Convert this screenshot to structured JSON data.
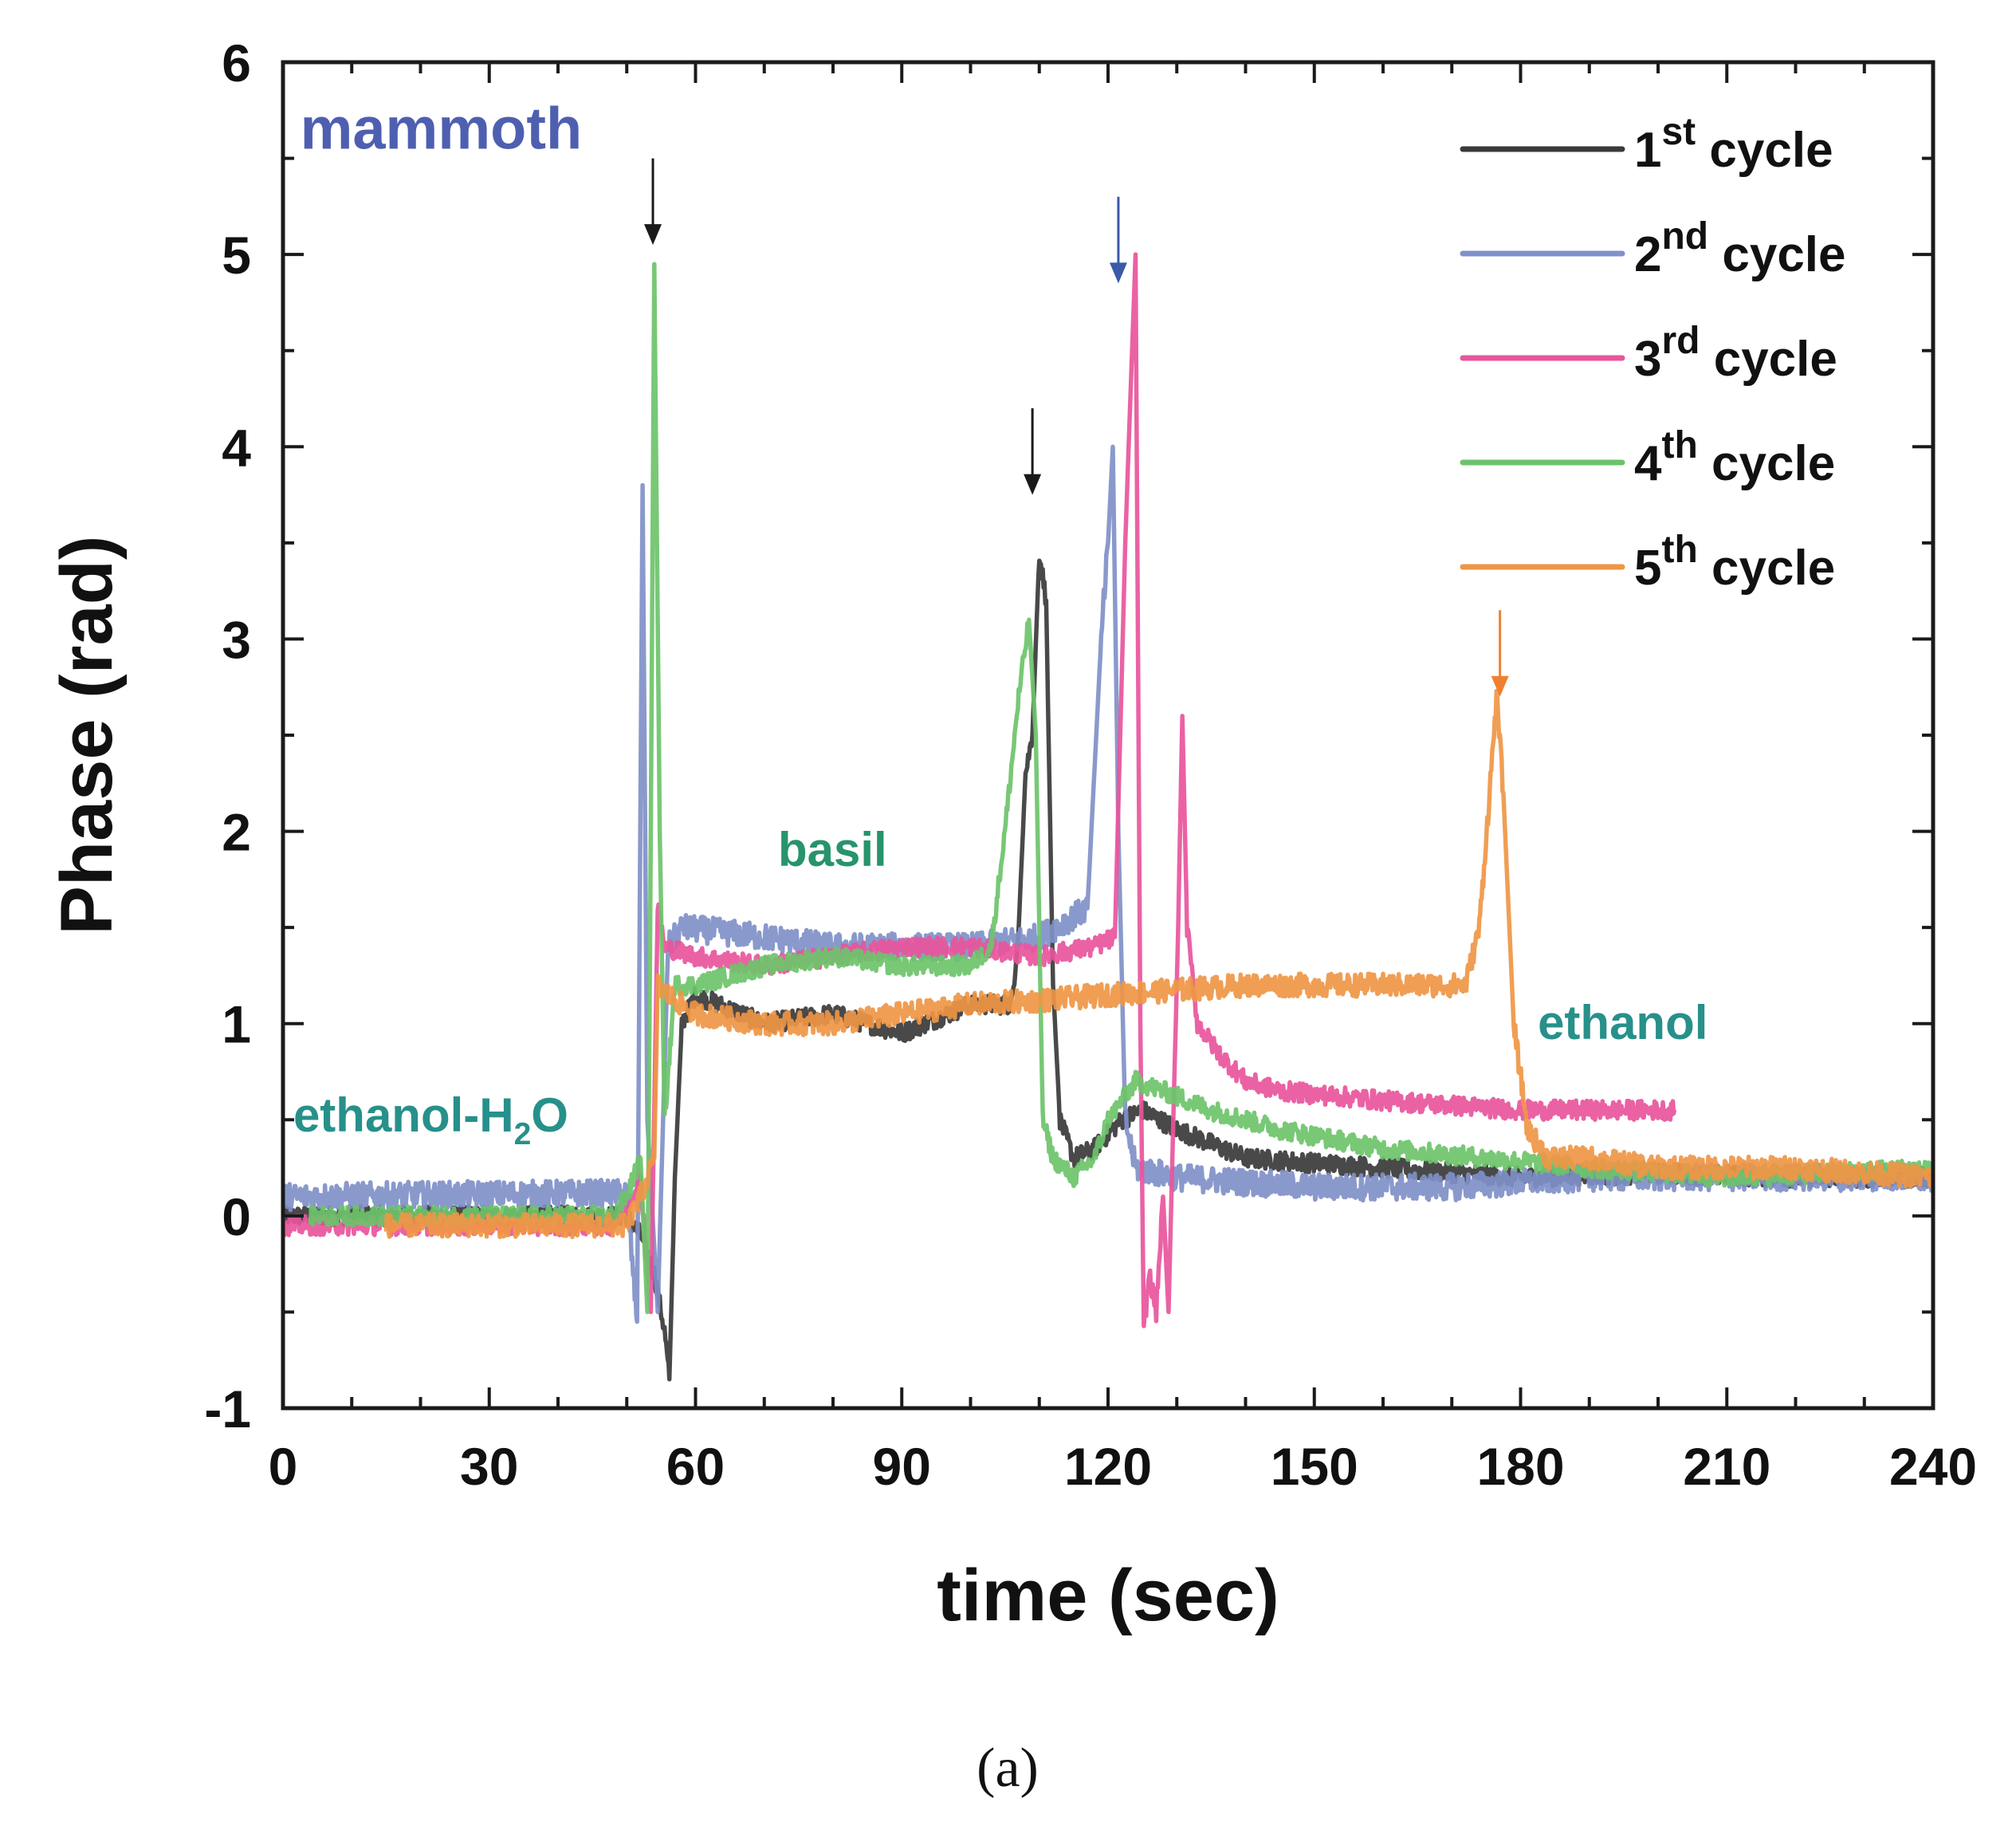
{
  "caption": "(a)",
  "chart_data": {
    "type": "line",
    "title": "",
    "xlabel": "time (sec)",
    "ylabel": "Phase (rad)",
    "xlim": [
      0,
      240
    ],
    "ylim": [
      -1,
      6
    ],
    "xticks": [
      0,
      30,
      60,
      90,
      120,
      150,
      180,
      210,
      240
    ],
    "yticks": [
      -1,
      0,
      1,
      2,
      3,
      4,
      5,
      6
    ],
    "grid": false,
    "legend_position": "top-right",
    "series": [
      {
        "name": "1st cycle",
        "label_main": "1",
        "label_sup": "st",
        "label_rest": " cycle",
        "color": "#3a3a3a",
        "noise": 0.05,
        "points": [
          [
            0,
            0.0
          ],
          [
            50,
            0.0
          ],
          [
            52,
            -0.1
          ],
          [
            54,
            -0.3
          ],
          [
            55.5,
            -0.6
          ],
          [
            56.2,
            -0.85
          ],
          [
            57,
            0.2
          ],
          [
            58,
            1.0
          ],
          [
            60,
            1.15
          ],
          [
            70,
            1.0
          ],
          [
            80,
            1.05
          ],
          [
            90,
            0.95
          ],
          [
            100,
            1.1
          ],
          [
            106,
            1.1
          ],
          [
            107,
            1.5
          ],
          [
            108,
            2.3
          ],
          [
            109,
            2.5
          ],
          [
            110,
            3.45
          ],
          [
            111,
            3.2
          ],
          [
            112,
            1.2
          ],
          [
            113,
            0.5
          ],
          [
            115,
            0.3
          ],
          [
            118,
            0.35
          ],
          [
            122,
            0.5
          ],
          [
            125,
            0.55
          ],
          [
            130,
            0.45
          ],
          [
            140,
            0.3
          ],
          [
            160,
            0.25
          ],
          [
            180,
            0.2
          ],
          [
            200,
            0.22
          ],
          [
            220,
            0.2
          ],
          [
            240,
            0.2
          ]
        ]
      },
      {
        "name": "2nd cycle",
        "label_main": "2",
        "label_sup": "nd",
        "label_rest": " cycle",
        "color": "#8090c8",
        "noise": 0.07,
        "points": [
          [
            0,
            0.1
          ],
          [
            50,
            0.12
          ],
          [
            51.5,
            -0.55
          ],
          [
            52.3,
            3.8
          ],
          [
            53,
            0.5
          ],
          [
            54.5,
            -0.5
          ],
          [
            56,
            1.4
          ],
          [
            58,
            1.5
          ],
          [
            70,
            1.45
          ],
          [
            80,
            1.4
          ],
          [
            90,
            1.4
          ],
          [
            100,
            1.4
          ],
          [
            110,
            1.45
          ],
          [
            117,
            1.6
          ],
          [
            119,
            3.0
          ],
          [
            120,
            3.5
          ],
          [
            120.7,
            4.0
          ],
          [
            121.5,
            2.0
          ],
          [
            122.5,
            0.5
          ],
          [
            124,
            0.25
          ],
          [
            130,
            0.2
          ],
          [
            150,
            0.15
          ],
          [
            170,
            0.15
          ],
          [
            190,
            0.2
          ],
          [
            210,
            0.2
          ],
          [
            240,
            0.2
          ]
        ]
      },
      {
        "name": "3rd cycle",
        "label_main": "3",
        "label_sup": "rd",
        "label_rest": " cycle",
        "color": "#e8559c",
        "noise": 0.05,
        "points": [
          [
            0,
            -0.05
          ],
          [
            48,
            -0.05
          ],
          [
            50,
            0.05
          ],
          [
            52,
            0.2
          ],
          [
            53.5,
            -0.5
          ],
          [
            54.5,
            1.6
          ],
          [
            55.5,
            1.4
          ],
          [
            60,
            1.35
          ],
          [
            70,
            1.3
          ],
          [
            80,
            1.35
          ],
          [
            90,
            1.4
          ],
          [
            100,
            1.4
          ],
          [
            110,
            1.35
          ],
          [
            118,
            1.4
          ],
          [
            121,
            1.45
          ],
          [
            122.5,
            3.5
          ],
          [
            124,
            5.0
          ],
          [
            124.7,
            1.0
          ],
          [
            125.2,
            -0.6
          ],
          [
            126,
            -0.3
          ],
          [
            127,
            -0.5
          ],
          [
            128,
            0.1
          ],
          [
            128.8,
            -0.5
          ],
          [
            129.5,
            0.5
          ],
          [
            130.2,
            1.5
          ],
          [
            130.8,
            2.6
          ],
          [
            131.5,
            1.5
          ],
          [
            133,
            1.0
          ],
          [
            136,
            0.85
          ],
          [
            140,
            0.7
          ],
          [
            145,
            0.65
          ],
          [
            160,
            0.6
          ],
          [
            180,
            0.55
          ],
          [
            190,
            0.55
          ],
          [
            202.5,
            0.55
          ]
        ]
      },
      {
        "name": "4th cycle",
        "label_main": "4",
        "label_sup": "th",
        "label_rest": " cycle",
        "color": "#6cc36a",
        "noise": 0.05,
        "points": [
          [
            4,
            0.0
          ],
          [
            48,
            0.0
          ],
          [
            50,
            0.1
          ],
          [
            52,
            0.3
          ],
          [
            53,
            -0.5
          ],
          [
            53.5,
            2.0
          ],
          [
            54,
            4.95
          ],
          [
            54.8,
            2.0
          ],
          [
            55.5,
            0.5
          ],
          [
            57,
            1.2
          ],
          [
            60,
            1.2
          ],
          [
            70,
            1.3
          ],
          [
            80,
            1.35
          ],
          [
            90,
            1.3
          ],
          [
            100,
            1.3
          ],
          [
            103,
            1.4
          ],
          [
            105,
            2.0
          ],
          [
            107,
            2.7
          ],
          [
            108.5,
            3.1
          ],
          [
            109.5,
            2.5
          ],
          [
            110.5,
            0.5
          ],
          [
            112,
            0.3
          ],
          [
            115,
            0.2
          ],
          [
            118,
            0.3
          ],
          [
            120,
            0.5
          ],
          [
            124,
            0.7
          ],
          [
            128,
            0.65
          ],
          [
            135,
            0.55
          ],
          [
            145,
            0.45
          ],
          [
            160,
            0.35
          ],
          [
            175,
            0.3
          ],
          [
            190,
            0.25
          ],
          [
            210,
            0.2
          ],
          [
            240,
            0.25
          ]
        ]
      },
      {
        "name": "5th cycle",
        "label_main": "5",
        "label_sup": "th",
        "label_rest": " cycle",
        "color": "#ef9645",
        "noise": 0.06,
        "points": [
          [
            15,
            -0.05
          ],
          [
            50,
            -0.05
          ],
          [
            52,
            0.1
          ],
          [
            54,
            0.3
          ],
          [
            54.5,
            1.2
          ],
          [
            56,
            1.15
          ],
          [
            60,
            1.05
          ],
          [
            70,
            1.0
          ],
          [
            80,
            1.0
          ],
          [
            90,
            1.05
          ],
          [
            100,
            1.1
          ],
          [
            110,
            1.12
          ],
          [
            120,
            1.15
          ],
          [
            140,
            1.2
          ],
          [
            160,
            1.2
          ],
          [
            172,
            1.2
          ],
          [
            174,
            1.5
          ],
          [
            175.5,
            2.2
          ],
          [
            176.5,
            2.7
          ],
          [
            177.5,
            2.2
          ],
          [
            179,
            1.0
          ],
          [
            181,
            0.45
          ],
          [
            184,
            0.3
          ],
          [
            190,
            0.3
          ],
          [
            200,
            0.25
          ],
          [
            220,
            0.25
          ],
          [
            240,
            0.2
          ]
        ]
      }
    ],
    "annotations": [
      {
        "id": "mammoth",
        "text": "mammoth",
        "x": 2.5,
        "y": 5.55,
        "color": "#4f5fb0",
        "size": "large"
      },
      {
        "id": "basil",
        "text": "basil",
        "x": 72,
        "y": 1.82,
        "color": "#27946b",
        "size": "medium"
      },
      {
        "id": "ethanol",
        "text": "ethanol",
        "x": 182.5,
        "y": 0.92,
        "color": "#27908a",
        "size": "medium"
      },
      {
        "id": "ethanol-h2o",
        "text": "ethanol-H",
        "sub": "2",
        "tail": "O",
        "x": 1.5,
        "y": 0.44,
        "color": "#27908a",
        "size": "medium"
      }
    ],
    "arrows": [
      {
        "x": 53.8,
        "y_from": 5.5,
        "y_to": 5.05,
        "color": "#1a1a1a"
      },
      {
        "x": 109,
        "y_from": 4.2,
        "y_to": 3.75,
        "color": "#1a1a1a"
      },
      {
        "x": 121.5,
        "y_from": 5.3,
        "y_to": 4.85,
        "color": "#3a5aa8"
      },
      {
        "x": 177,
        "y_from": 3.15,
        "y_to": 2.7,
        "color": "#ef8030"
      }
    ]
  }
}
